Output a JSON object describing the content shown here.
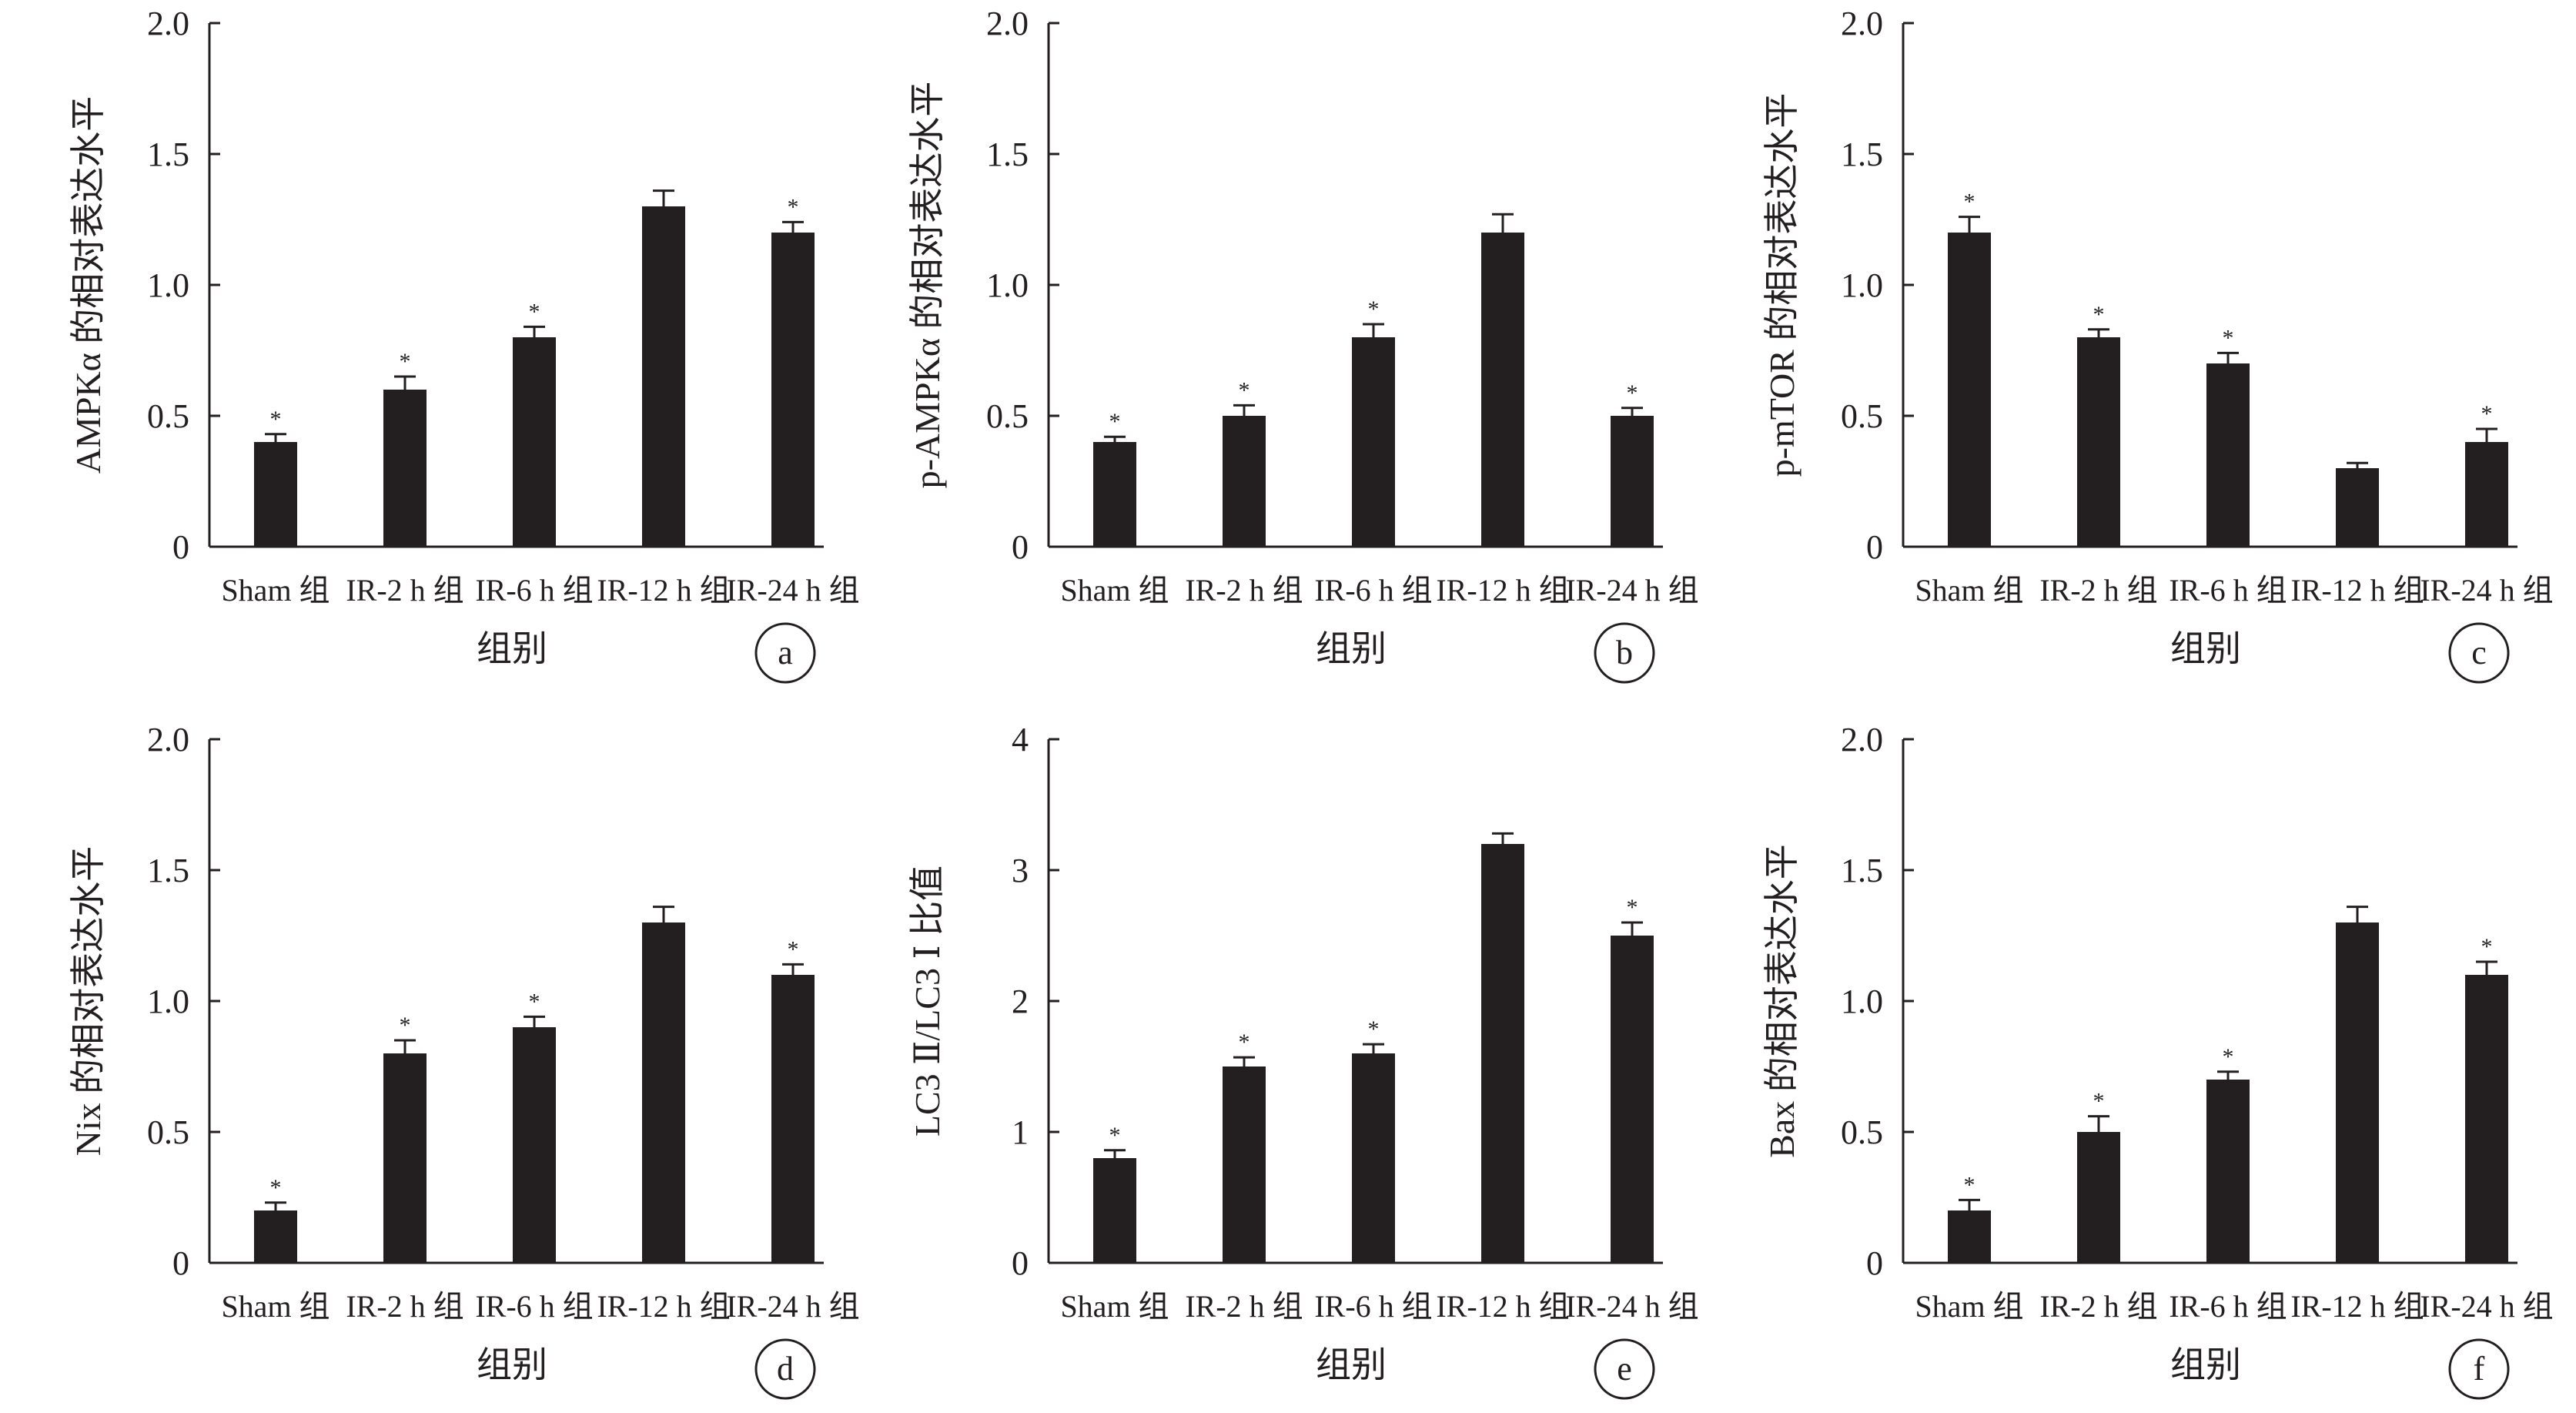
{
  "chart_data": [
    {
      "id": "a",
      "type": "bar",
      "ylabel": "AMPKα 的相对表达水平",
      "xlabel": "组别",
      "panel_label": "a",
      "ylim": [
        0,
        2.0
      ],
      "yticks": [
        "0",
        "0.5",
        "1.0",
        "1.5",
        "2.0"
      ],
      "categories": [
        "Sham 组",
        "IR-2 h 组",
        "IR-6 h 组",
        "IR-12 h 组",
        "IR-24 h 组"
      ],
      "values": [
        0.4,
        0.6,
        0.8,
        1.3,
        1.2
      ],
      "errors": [
        0.03,
        0.05,
        0.04,
        0.06,
        0.04
      ],
      "annotations": [
        "*",
        "*",
        "*",
        "",
        "*"
      ]
    },
    {
      "id": "b",
      "type": "bar",
      "ylabel": "p-AMPKα 的相对表达水平",
      "xlabel": "组别",
      "panel_label": "b",
      "ylim": [
        0,
        2.0
      ],
      "yticks": [
        "0",
        "0.5",
        "1.0",
        "1.5",
        "2.0"
      ],
      "categories": [
        "Sham 组",
        "IR-2 h 组",
        "IR-6 h 组",
        "IR-12 h 组",
        "IR-24 h 组"
      ],
      "values": [
        0.4,
        0.5,
        0.8,
        1.2,
        0.5
      ],
      "errors": [
        0.02,
        0.04,
        0.05,
        0.07,
        0.03
      ],
      "annotations": [
        "*",
        "*",
        "*",
        "",
        "*"
      ]
    },
    {
      "id": "c",
      "type": "bar",
      "ylabel": "p-mTOR 的相对表达水平",
      "xlabel": "组别",
      "panel_label": "c",
      "ylim": [
        0,
        2.0
      ],
      "yticks": [
        "0",
        "0.5",
        "1.0",
        "1.5",
        "2.0"
      ],
      "categories": [
        "Sham 组",
        "IR-2 h 组",
        "IR-6 h 组",
        "IR-12 h 组",
        "IR-24 h 组"
      ],
      "values": [
        1.2,
        0.8,
        0.7,
        0.3,
        0.4
      ],
      "errors": [
        0.06,
        0.03,
        0.04,
        0.02,
        0.05
      ],
      "annotations": [
        "*",
        "*",
        "*",
        "",
        "*"
      ]
    },
    {
      "id": "d",
      "type": "bar",
      "ylabel": "Nix 的相对表达水平",
      "xlabel": "组别",
      "panel_label": "d",
      "ylim": [
        0,
        2.0
      ],
      "yticks": [
        "0",
        "0.5",
        "1.0",
        "1.5",
        "2.0"
      ],
      "categories": [
        "Sham 组",
        "IR-2 h 组",
        "IR-6 h 组",
        "IR-12 h 组",
        "IR-24 h 组"
      ],
      "values": [
        0.2,
        0.8,
        0.9,
        1.3,
        1.1
      ],
      "errors": [
        0.03,
        0.05,
        0.04,
        0.06,
        0.04
      ],
      "annotations": [
        "*",
        "*",
        "*",
        "",
        "*"
      ]
    },
    {
      "id": "e",
      "type": "bar",
      "ylabel": "LC3 Ⅱ/LC3 Ⅰ 比值",
      "xlabel": "组别",
      "panel_label": "e",
      "ylim": [
        0,
        4
      ],
      "yticks": [
        "0",
        "1",
        "2",
        "3",
        "4"
      ],
      "categories": [
        "Sham 组",
        "IR-2 h 组",
        "IR-6 h 组",
        "IR-12 h 组",
        "IR-24 h 组"
      ],
      "values": [
        0.8,
        1.5,
        1.6,
        3.2,
        2.5
      ],
      "errors": [
        0.06,
        0.07,
        0.07,
        0.08,
        0.1
      ],
      "annotations": [
        "*",
        "*",
        "*",
        "",
        "*"
      ]
    },
    {
      "id": "f",
      "type": "bar",
      "ylabel": "Bax 的相对表达水平",
      "xlabel": "组别",
      "panel_label": "f",
      "ylim": [
        0,
        2.0
      ],
      "yticks": [
        "0",
        "0.5",
        "1.0",
        "1.5",
        "2.0"
      ],
      "categories": [
        "Sham 组",
        "IR-2 h 组",
        "IR-6 h 组",
        "IR-12 h 组",
        "IR-24 h 组"
      ],
      "values": [
        0.2,
        0.5,
        0.7,
        1.3,
        1.1
      ],
      "errors": [
        0.04,
        0.06,
        0.03,
        0.06,
        0.05
      ],
      "annotations": [
        "*",
        "*",
        "*",
        "",
        "*"
      ]
    }
  ]
}
